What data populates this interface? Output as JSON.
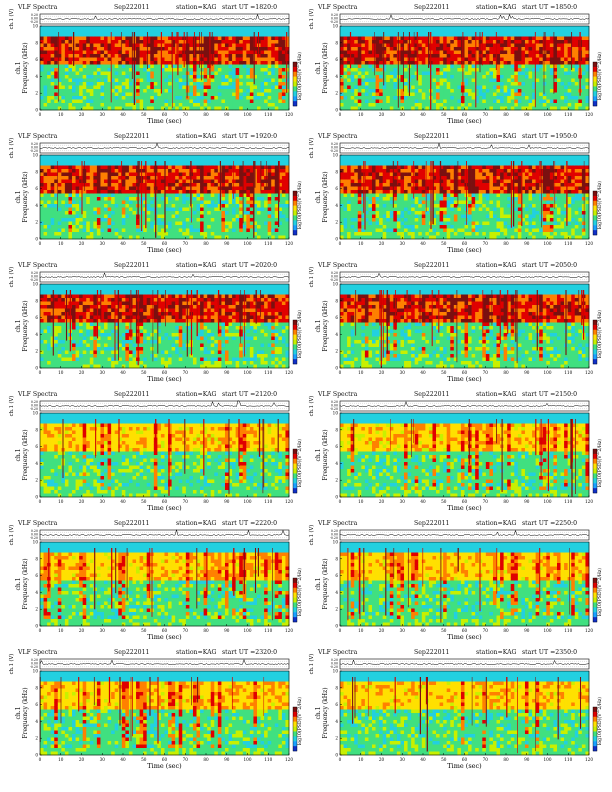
{
  "chart_data": [
    {
      "type": "heatmap",
      "title": "VLF Spectra",
      "date": "Sep222011",
      "station": "station=KAG",
      "start": "start UT =1820:0"
    },
    {
      "type": "heatmap",
      "title": "VLF Spectra",
      "date": "Sep222011",
      "station": "station=KAG",
      "start": "start UT =1850:0"
    },
    {
      "type": "heatmap",
      "title": "VLF Spectra",
      "date": "Sep222011",
      "station": "station=KAG",
      "start": "start UT =1920:0"
    },
    {
      "type": "heatmap",
      "title": "VLF Spectra",
      "date": "Sep222011",
      "station": "station=KAG",
      "start": "start UT =1950:0"
    },
    {
      "type": "heatmap",
      "title": "VLF Spectra",
      "date": "Sep222011",
      "station": "station=KAG",
      "start": "start UT =2020:0"
    },
    {
      "type": "heatmap",
      "title": "VLF Spectra",
      "date": "Sep222011",
      "station": "station=KAG",
      "start": "start UT =2050:0"
    },
    {
      "type": "heatmap",
      "title": "VLF Spectra",
      "date": "Sep222011",
      "station": "station=KAG",
      "start": "start UT =2120:0"
    },
    {
      "type": "heatmap",
      "title": "VLF Spectra",
      "date": "Sep222011",
      "station": "station=KAG",
      "start": "start UT =2150:0"
    },
    {
      "type": "heatmap",
      "title": "VLF Spectra",
      "date": "Sep222011",
      "station": "station=KAG",
      "start": "start UT =2220:0"
    },
    {
      "type": "heatmap",
      "title": "VLF Spectra",
      "date": "Sep222011",
      "station": "station=KAG",
      "start": "start UT =2250:0"
    },
    {
      "type": "heatmap",
      "title": "VLF Spectra",
      "date": "Sep222011",
      "station": "station=KAG",
      "start": "start UT =2320:0"
    },
    {
      "type": "heatmap",
      "title": "VLF Spectra",
      "date": "Sep222011",
      "station": "station=KAG",
      "start": "start UT =2350:0"
    }
  ],
  "axes": {
    "xlabel": "Time (sec)",
    "xticks": [
      "0",
      "10",
      "20",
      "30",
      "40",
      "50",
      "60",
      "70",
      "80",
      "90",
      "100",
      "110",
      "120"
    ],
    "xlim": [
      0,
      120
    ],
    "ylabel": "Frequency (kHz)",
    "ylabel_channel": "ch.1",
    "yticks": [
      "0",
      "2",
      "4",
      "6",
      "8",
      "10"
    ],
    "ylim": [
      0,
      10
    ],
    "wave_label": "ch.1 (V)",
    "wave_ticks": [
      "0.20",
      "0.00",
      "-0.20"
    ],
    "colorbar_label": "log10(PSD)(V^2/Hz)"
  },
  "colors": {
    "colormap": [
      "#1030c8",
      "#1aa0ff",
      "#22d0e0",
      "#40e080",
      "#c8f000",
      "#ffe000",
      "#ff8000",
      "#e00000",
      "#7a1010"
    ],
    "background": "#ffffff"
  }
}
